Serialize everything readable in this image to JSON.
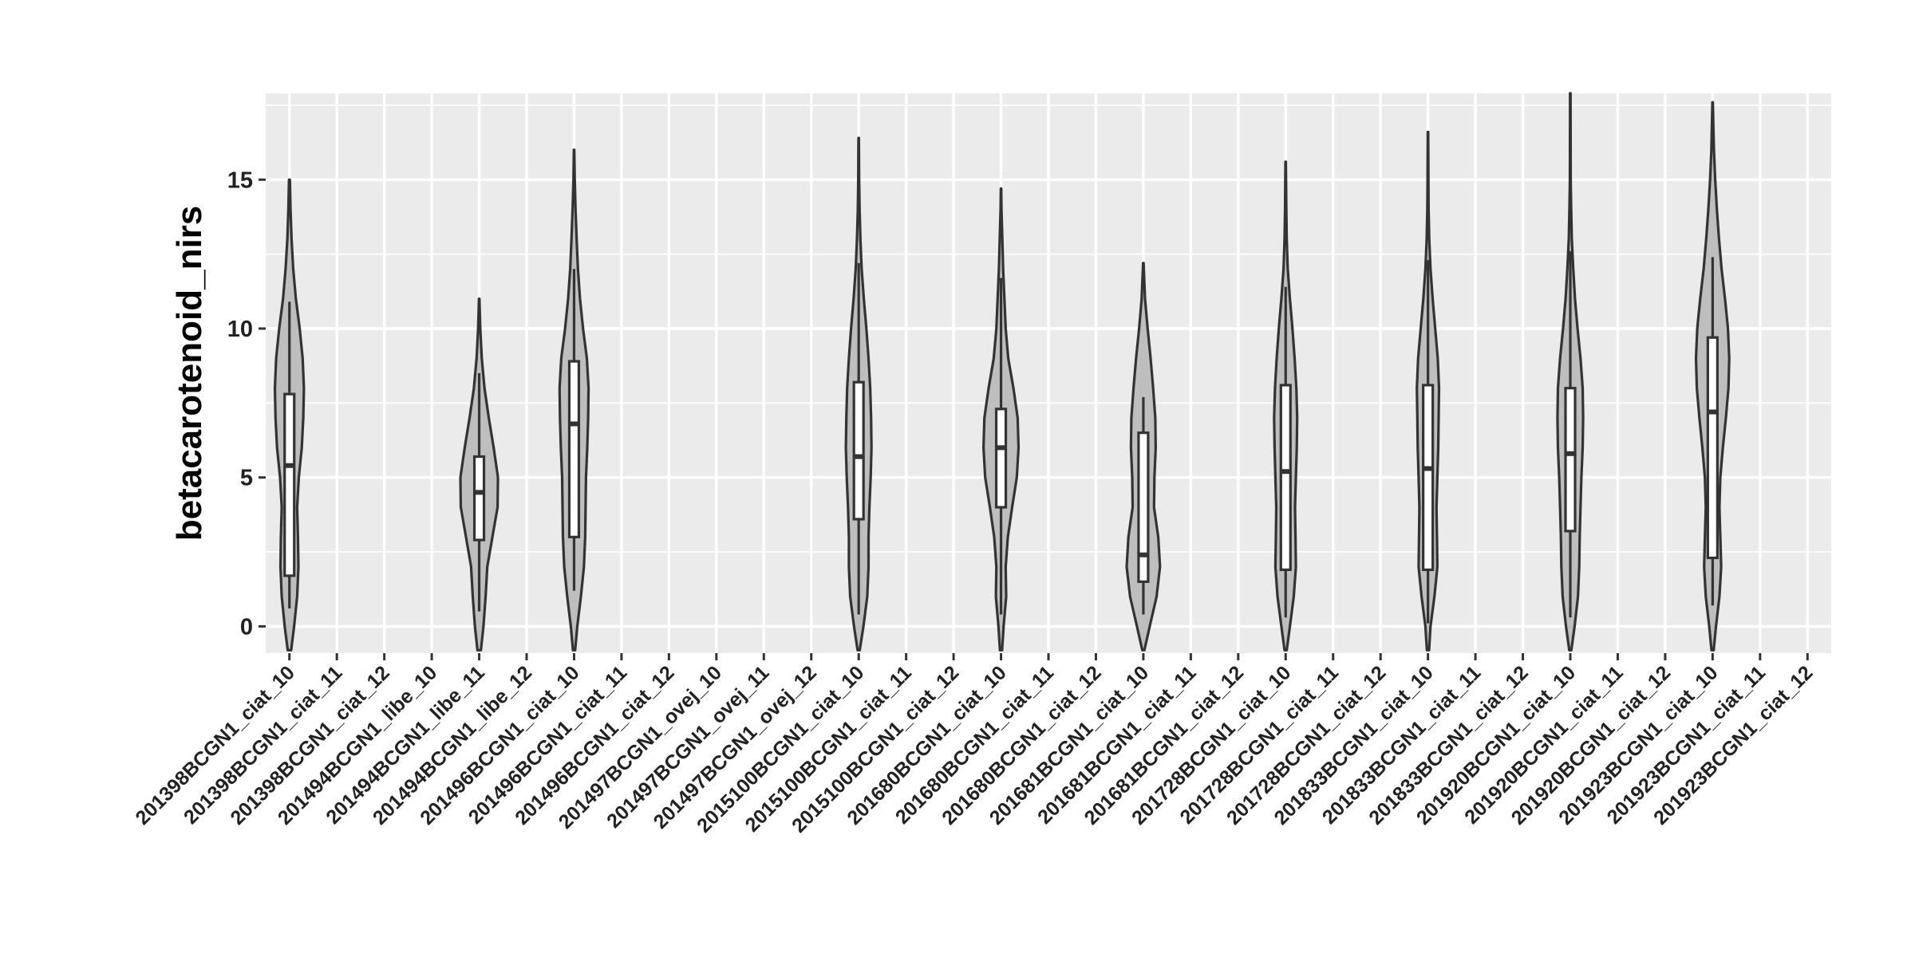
{
  "chart_data": {
    "type": "violin",
    "title": "",
    "xlabel": "",
    "ylabel": "betacarotenoid_nirs",
    "ylim": [
      -0.9,
      17.9
    ],
    "yticks": [
      0,
      5,
      10,
      15
    ],
    "grid": true,
    "panel_background": "#EBEBEB",
    "violin_fill": "#BEBEBE",
    "categories": [
      "201398BCGN1_ciat_10",
      "201398BCGN1_ciat_11",
      "201398BCGN1_ciat_12",
      "201494BCGN1_libe_10",
      "201494BCGN1_libe_11",
      "201494BCGN1_libe_12",
      "201496BCGN1_ciat_10",
      "201496BCGN1_ciat_11",
      "201496BCGN1_ciat_12",
      "201497BCGN1_ovej_10",
      "201497BCGN1_ovej_11",
      "201497BCGN1_ovej_12",
      "2015100BCGN1_ciat_10",
      "2015100BCGN1_ciat_11",
      "2015100BCGN1_ciat_12",
      "201680BCGN1_ciat_10",
      "201680BCGN1_ciat_11",
      "201680BCGN1_ciat_12",
      "201681BCGN1_ciat_10",
      "201681BCGN1_ciat_11",
      "201681BCGN1_ciat_12",
      "201728BCGN1_ciat_10",
      "201728BCGN1_ciat_11",
      "201728BCGN1_ciat_12",
      "201833BCGN1_ciat_10",
      "201833BCGN1_ciat_11",
      "201833BCGN1_ciat_12",
      "201920BCGN1_ciat_10",
      "201920BCGN1_ciat_11",
      "201920BCGN1_ciat_12",
      "201923BCGN1_ciat_10",
      "201923BCGN1_ciat_11",
      "201923BCGN1_ciat_12"
    ],
    "violins": [
      {
        "category": "201398BCGN1_ciat_10",
        "whisker_low": 0.6,
        "q1": 1.7,
        "median": 5.4,
        "q3": 7.8,
        "whisker_high": 10.9,
        "profile": [
          [
            -0.8,
            0.08
          ],
          [
            0,
            0.22
          ],
          [
            1,
            0.36
          ],
          [
            2,
            0.42
          ],
          [
            3,
            0.4
          ],
          [
            4,
            0.36
          ],
          [
            5,
            0.44
          ],
          [
            6,
            0.58
          ],
          [
            7,
            0.65
          ],
          [
            8,
            0.68
          ],
          [
            9,
            0.62
          ],
          [
            10,
            0.48
          ],
          [
            11,
            0.3
          ],
          [
            12,
            0.18
          ],
          [
            13,
            0.1
          ],
          [
            14,
            0.05
          ],
          [
            15,
            0.02
          ]
        ]
      },
      {
        "category": "201494BCGN1_libe_11",
        "whisker_low": 0.5,
        "q1": 2.9,
        "median": 4.5,
        "q3": 5.7,
        "whisker_high": 8.5,
        "profile": [
          [
            -0.8,
            0.08
          ],
          [
            0,
            0.2
          ],
          [
            1,
            0.3
          ],
          [
            2,
            0.38
          ],
          [
            3,
            0.62
          ],
          [
            4,
            0.86
          ],
          [
            5,
            0.88
          ],
          [
            6,
            0.68
          ],
          [
            7,
            0.45
          ],
          [
            8,
            0.25
          ],
          [
            9,
            0.12
          ],
          [
            10,
            0.05
          ],
          [
            11,
            0.01
          ]
        ]
      },
      {
        "category": "201496BCGN1_ciat_10",
        "whisker_low": 1.2,
        "q1": 3.0,
        "median": 6.8,
        "q3": 8.9,
        "whisker_high": 12.0,
        "profile": [
          [
            -0.8,
            0.05
          ],
          [
            0,
            0.15
          ],
          [
            1,
            0.32
          ],
          [
            2,
            0.46
          ],
          [
            3,
            0.52
          ],
          [
            4,
            0.54
          ],
          [
            5,
            0.56
          ],
          [
            6,
            0.62
          ],
          [
            7,
            0.66
          ],
          [
            8,
            0.68
          ],
          [
            9,
            0.6
          ],
          [
            10,
            0.42
          ],
          [
            11,
            0.28
          ],
          [
            12,
            0.18
          ],
          [
            13,
            0.12
          ],
          [
            14,
            0.07
          ],
          [
            15,
            0.03
          ],
          [
            16,
            0.01
          ]
        ]
      },
      {
        "category": "2015100BCGN1_ciat_10",
        "whisker_low": 0.4,
        "q1": 3.6,
        "median": 5.7,
        "q3": 8.2,
        "whisker_high": 12.2,
        "profile": [
          [
            -0.8,
            0.05
          ],
          [
            0,
            0.22
          ],
          [
            1,
            0.4
          ],
          [
            2,
            0.46
          ],
          [
            3,
            0.46
          ],
          [
            4,
            0.5
          ],
          [
            5,
            0.56
          ],
          [
            6,
            0.6
          ],
          [
            7,
            0.58
          ],
          [
            8,
            0.54
          ],
          [
            9,
            0.46
          ],
          [
            10,
            0.36
          ],
          [
            11,
            0.24
          ],
          [
            12,
            0.14
          ],
          [
            13,
            0.08
          ],
          [
            14,
            0.04
          ],
          [
            15,
            0.02
          ],
          [
            16.4,
            0.01
          ]
        ]
      },
      {
        "category": "201680BCGN1_ciat_10",
        "whisker_low": 0.4,
        "q1": 4.0,
        "median": 6.0,
        "q3": 7.3,
        "whisker_high": 11.7,
        "profile": [
          [
            -0.8,
            0.05
          ],
          [
            0,
            0.12
          ],
          [
            1,
            0.24
          ],
          [
            2,
            0.22
          ],
          [
            3,
            0.32
          ],
          [
            4,
            0.52
          ],
          [
            5,
            0.74
          ],
          [
            6,
            0.82
          ],
          [
            7,
            0.78
          ],
          [
            8,
            0.58
          ],
          [
            9,
            0.34
          ],
          [
            10,
            0.22
          ],
          [
            11,
            0.16
          ],
          [
            12,
            0.1
          ],
          [
            13,
            0.06
          ],
          [
            14,
            0.02
          ],
          [
            14.7,
            0.01
          ]
        ]
      },
      {
        "category": "201681BCGN1_ciat_10",
        "whisker_low": 0.4,
        "q1": 1.5,
        "median": 2.4,
        "q3": 6.5,
        "whisker_high": 7.7,
        "profile": [
          [
            -0.8,
            0.05
          ],
          [
            0,
            0.3
          ],
          [
            1,
            0.62
          ],
          [
            2,
            0.78
          ],
          [
            3,
            0.7
          ],
          [
            4,
            0.5
          ],
          [
            5,
            0.52
          ],
          [
            6,
            0.58
          ],
          [
            7,
            0.56
          ],
          [
            8,
            0.46
          ],
          [
            9,
            0.34
          ],
          [
            10,
            0.2
          ],
          [
            11,
            0.08
          ],
          [
            12.2,
            0.01
          ]
        ]
      },
      {
        "category": "201728BCGN1_ciat_10",
        "whisker_low": 0.3,
        "q1": 1.9,
        "median": 5.2,
        "q3": 8.1,
        "whisker_high": 11.4,
        "profile": [
          [
            -0.8,
            0.05
          ],
          [
            0,
            0.2
          ],
          [
            1,
            0.38
          ],
          [
            2,
            0.48
          ],
          [
            3,
            0.46
          ],
          [
            4,
            0.44
          ],
          [
            5,
            0.48
          ],
          [
            6,
            0.52
          ],
          [
            7,
            0.54
          ],
          [
            8,
            0.5
          ],
          [
            9,
            0.42
          ],
          [
            10,
            0.32
          ],
          [
            11,
            0.2
          ],
          [
            12,
            0.1
          ],
          [
            13,
            0.05
          ],
          [
            14,
            0.03
          ],
          [
            15.6,
            0.01
          ]
        ]
      },
      {
        "category": "201833BCGN1_ciat_10",
        "whisker_low": 0.1,
        "q1": 1.9,
        "median": 5.3,
        "q3": 8.1,
        "whisker_high": 12.3,
        "profile": [
          [
            -0.8,
            0.05
          ],
          [
            0,
            0.12
          ],
          [
            1,
            0.3
          ],
          [
            2,
            0.44
          ],
          [
            3,
            0.42
          ],
          [
            4,
            0.4
          ],
          [
            5,
            0.44
          ],
          [
            6,
            0.48
          ],
          [
            7,
            0.5
          ],
          [
            8,
            0.52
          ],
          [
            9,
            0.46
          ],
          [
            10,
            0.34
          ],
          [
            11,
            0.22
          ],
          [
            12,
            0.12
          ],
          [
            13,
            0.06
          ],
          [
            14,
            0.03
          ],
          [
            15,
            0.02
          ],
          [
            16.6,
            0.01
          ]
        ]
      },
      {
        "category": "201920BCGN1_ciat_10",
        "whisker_low": 0.3,
        "q1": 3.2,
        "median": 5.8,
        "q3": 8.0,
        "whisker_high": 12.6,
        "profile": [
          [
            -0.8,
            0.05
          ],
          [
            0,
            0.2
          ],
          [
            1,
            0.36
          ],
          [
            2,
            0.42
          ],
          [
            3,
            0.44
          ],
          [
            4,
            0.48
          ],
          [
            5,
            0.52
          ],
          [
            6,
            0.58
          ],
          [
            7,
            0.6
          ],
          [
            8,
            0.58
          ],
          [
            9,
            0.48
          ],
          [
            10,
            0.34
          ],
          [
            11,
            0.22
          ],
          [
            12,
            0.14
          ],
          [
            13,
            0.07
          ],
          [
            14,
            0.04
          ],
          [
            15,
            0.02
          ],
          [
            17.9,
            0.01
          ]
        ]
      },
      {
        "category": "201923BCGN1_ciat_10",
        "whisker_low": 0.7,
        "q1": 2.3,
        "median": 7.2,
        "q3": 9.7,
        "whisker_high": 12.4,
        "profile": [
          [
            -0.8,
            0.05
          ],
          [
            0,
            0.16
          ],
          [
            1,
            0.32
          ],
          [
            2,
            0.4
          ],
          [
            3,
            0.36
          ],
          [
            4,
            0.32
          ],
          [
            5,
            0.36
          ],
          [
            6,
            0.48
          ],
          [
            7,
            0.62
          ],
          [
            8,
            0.74
          ],
          [
            9,
            0.78
          ],
          [
            10,
            0.72
          ],
          [
            11,
            0.58
          ],
          [
            12,
            0.42
          ],
          [
            13,
            0.3
          ],
          [
            14,
            0.2
          ],
          [
            15,
            0.12
          ],
          [
            16,
            0.06
          ],
          [
            17.6,
            0.01
          ]
        ]
      }
    ]
  }
}
